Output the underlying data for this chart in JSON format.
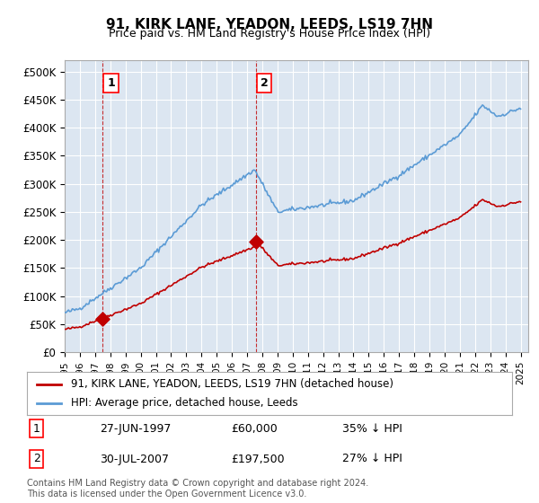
{
  "title": "91, KIRK LANE, YEADON, LEEDS, LS19 7HN",
  "subtitle": "Price paid vs. HM Land Registry's House Price Index (HPI)",
  "x_start_year": 1995,
  "x_end_year": 2025,
  "hpi_color": "#5b9bd5",
  "price_color": "#c00000",
  "marker_color": "#c00000",
  "background_color": "#dce6f1",
  "plot_bg_color": "#dce6f1",
  "legend_label_red": "91, KIRK LANE, YEADON, LEEDS, LS19 7HN (detached house)",
  "legend_label_blue": "HPI: Average price, detached house, Leeds",
  "sale1_year": 1997.49,
  "sale1_price": 60000,
  "sale1_label": "1",
  "sale1_date": "27-JUN-1997",
  "sale1_pct": "35% ↓ HPI",
  "sale2_year": 2007.58,
  "sale2_price": 197500,
  "sale2_label": "2",
  "sale2_date": "30-JUL-2007",
  "sale2_pct": "27% ↓ HPI",
  "footer": "Contains HM Land Registry data © Crown copyright and database right 2024.\nThis data is licensed under the Open Government Licence v3.0.",
  "yticks": [
    0,
    50000,
    100000,
    150000,
    200000,
    250000,
    300000,
    350000,
    400000,
    450000,
    500000
  ],
  "ylabels": [
    "£0",
    "£50K",
    "£100K",
    "£150K",
    "£200K",
    "£250K",
    "£300K",
    "£350K",
    "£400K",
    "£450K",
    "£500K"
  ]
}
